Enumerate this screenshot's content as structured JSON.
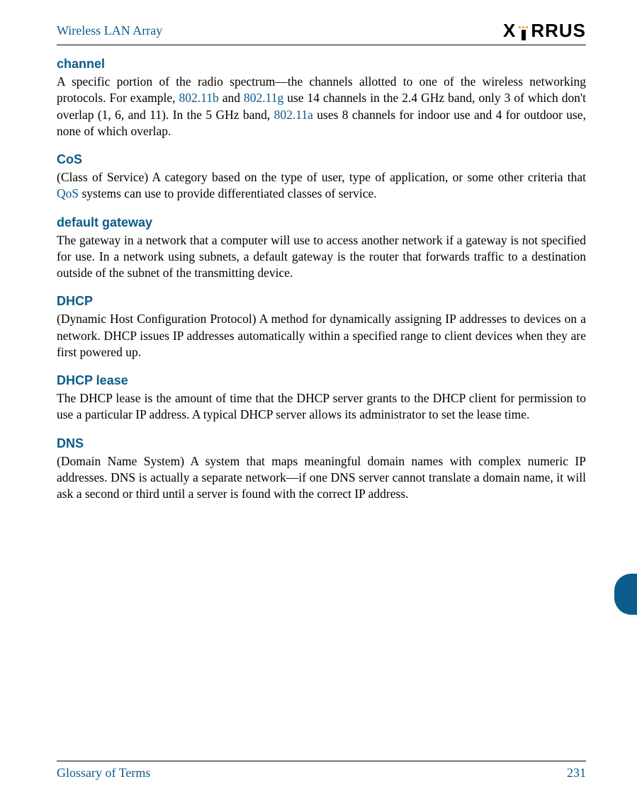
{
  "header": {
    "title": "Wireless LAN Array",
    "logo_text_1": "X",
    "logo_text_2": "RRUS"
  },
  "colors": {
    "accent": "#0b5c8a",
    "orange": "#f7941e",
    "text": "#000000",
    "background": "#ffffff"
  },
  "terms": [
    {
      "title": "channel",
      "segments": [
        {
          "text": "A specific portion of the radio spectrum—the channels allotted to one of the wireless networking protocols. For example, ",
          "link": false
        },
        {
          "text": "802.11b",
          "link": true
        },
        {
          "text": " and ",
          "link": false
        },
        {
          "text": "802.11g",
          "link": true
        },
        {
          "text": " use 14 channels in the 2.4 GHz band, only 3 of which don't overlap (1, 6, and 11). In the 5 GHz band, ",
          "link": false
        },
        {
          "text": "802.11a",
          "link": true
        },
        {
          "text": " uses 8 channels for indoor use and 4 for outdoor use, none of which overlap.",
          "link": false
        }
      ]
    },
    {
      "title": "CoS",
      "segments": [
        {
          "text": "(Class of Service) A category based on the type of user, type of application, or some other criteria that ",
          "link": false
        },
        {
          "text": "QoS",
          "link": true
        },
        {
          "text": " systems can use to provide differentiated classes of service.",
          "link": false
        }
      ]
    },
    {
      "title": "default gateway",
      "segments": [
        {
          "text": "The gateway in a network that a computer will use to access another network if a gateway is not specified for use. In a network using subnets, a default gateway is the router that forwards traffic to a destination outside of the subnet of the transmitting device.",
          "link": false
        }
      ]
    },
    {
      "title": "DHCP",
      "segments": [
        {
          "text": "(Dynamic Host Configuration Protocol) A method for dynamically assigning IP addresses to devices on a network. DHCP issues IP addresses automatically within a specified range to client devices when they are first powered up.",
          "link": false
        }
      ]
    },
    {
      "title": "DHCP lease",
      "segments": [
        {
          "text": "The DHCP lease is the amount of time that the DHCP server grants to the DHCP client for permission to use a particular IP address. A typical DHCP server allows its administrator to set the lease time.",
          "link": false
        }
      ]
    },
    {
      "title": "DNS",
      "segments": [
        {
          "text": "(Domain Name System) A system that maps meaningful domain names with complex numeric IP addresses. DNS is actually a separate network—if one DNS server cannot translate a domain name, it will ask a second or third until a server is found with the correct IP address.",
          "link": false
        }
      ]
    }
  ],
  "footer": {
    "section": "Glossary of Terms",
    "page_number": "231"
  }
}
